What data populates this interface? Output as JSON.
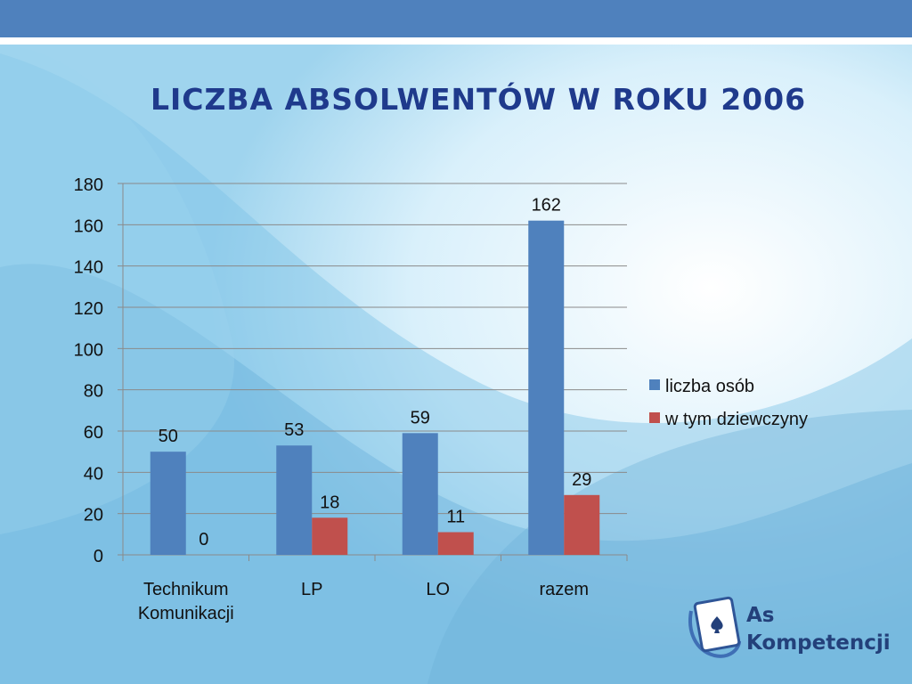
{
  "title": "LICZBA ABSOLWENTÓW W ROKU 2006",
  "logo": {
    "line1": "As",
    "line2": "Kompetencji"
  },
  "colors": {
    "series1": "#4f81bd",
    "series2": "#c0504d",
    "title": "#1f3a8c",
    "band": "#4f81bd"
  },
  "chart_data": {
    "type": "bar",
    "title": "",
    "xlabel": "",
    "ylabel": "",
    "categories": [
      "Technikum Komunikacji",
      "LP",
      "LO",
      "razem"
    ],
    "series": [
      {
        "name": "liczba osób",
        "values": [
          50,
          53,
          59,
          162
        ]
      },
      {
        "name": "w tym dziewczyny",
        "values": [
          0,
          18,
          11,
          29
        ]
      }
    ],
    "ylim": [
      0,
      180
    ],
    "yticks": [
      "0",
      "20",
      "40",
      "60",
      "80",
      "100",
      "120",
      "140",
      "160",
      "180"
    ],
    "grid": true,
    "legend": "right"
  }
}
